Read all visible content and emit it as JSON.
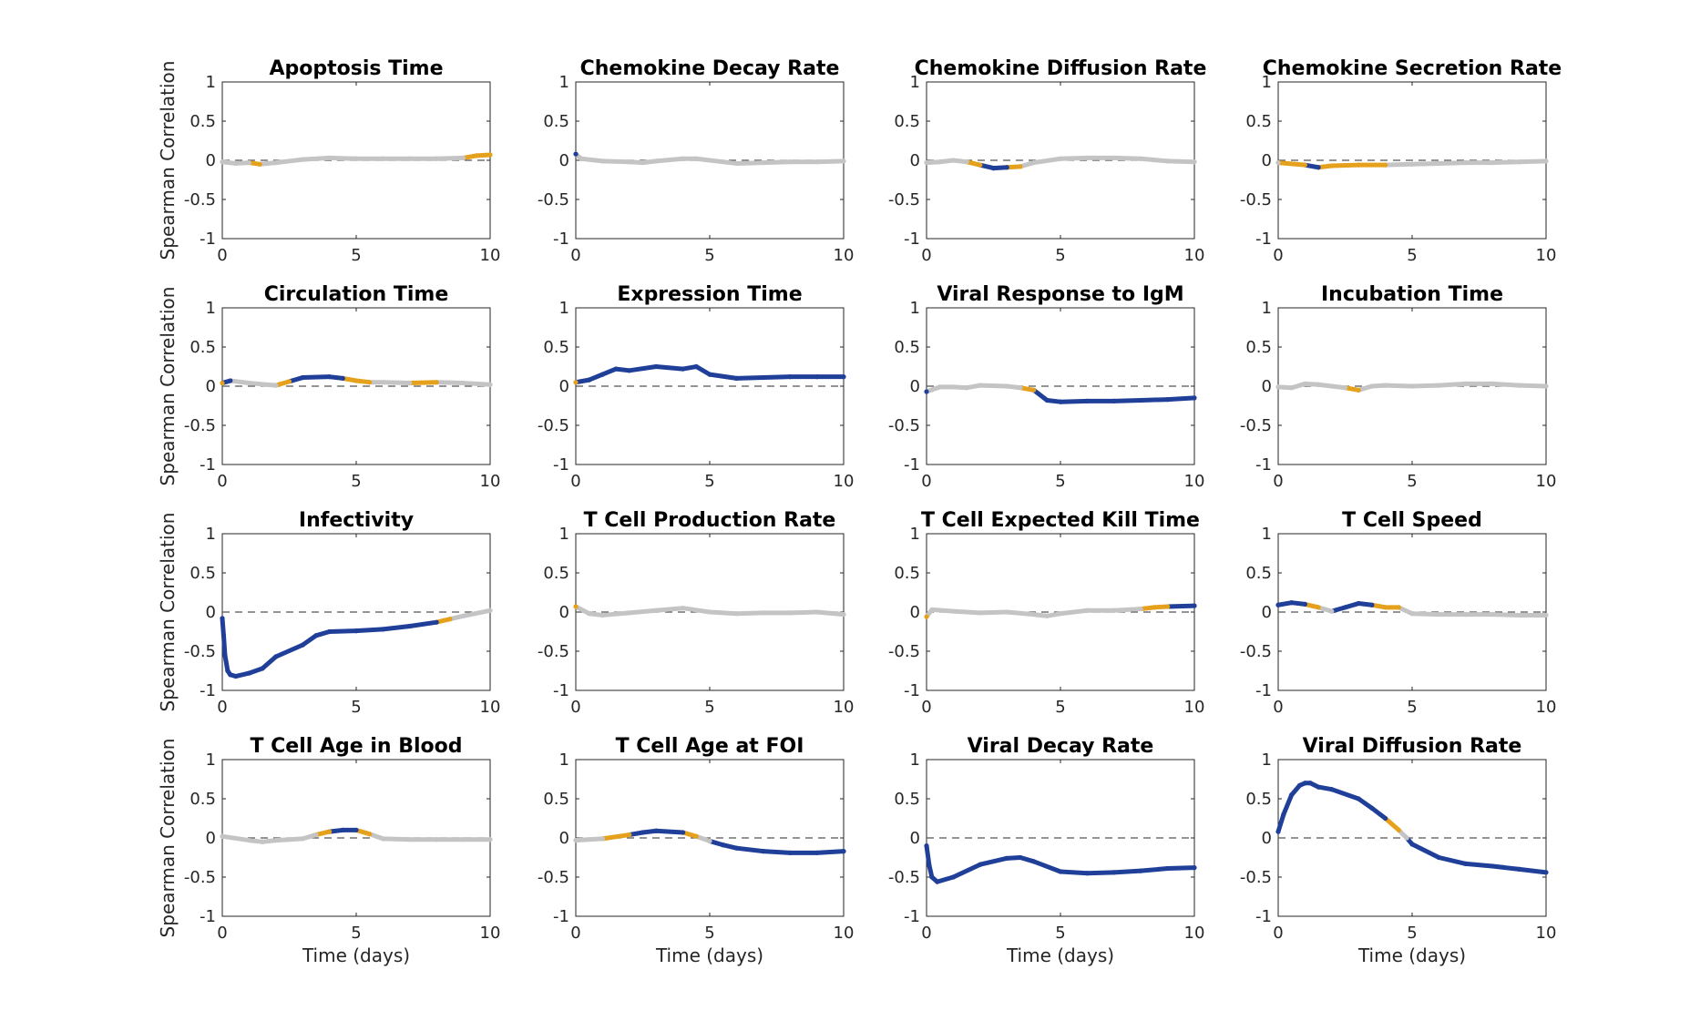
{
  "figure": {
    "ylabel": "Spearman Correlation",
    "xlabel": "Time (days)",
    "xlim": [
      0,
      10
    ],
    "ylim": [
      -1,
      1
    ],
    "xticks": [
      0,
      5,
      10
    ],
    "yticks": [
      1,
      0.5,
      0,
      -0.5,
      -1
    ],
    "zero_line": "dashed",
    "colors": {
      "significant": "#1f3f99",
      "borderline": "#e6a11c",
      "not_significant": "#c4c4c4",
      "axis": "#262626",
      "zero_line": "#555555"
    }
  },
  "chart_data": [
    {
      "type": "line",
      "title": "Apoptosis Time",
      "ylim": [
        -1,
        1
      ],
      "x": [
        0,
        0.5,
        1,
        1.4,
        2,
        3,
        4,
        5,
        6,
        7,
        8,
        9,
        9.5,
        10
      ],
      "y": [
        -0.02,
        -0.04,
        -0.03,
        -0.05,
        -0.03,
        0.01,
        0.03,
        0.02,
        0.02,
        0.02,
        0.02,
        0.03,
        0.06,
        0.07
      ],
      "status": [
        "n",
        "n",
        "n",
        "b",
        "n",
        "n",
        "n",
        "n",
        "n",
        "n",
        "n",
        "n",
        "b",
        "b"
      ]
    },
    {
      "type": "line",
      "title": "Chemokine Decay Rate",
      "ylim": [
        -1,
        1
      ],
      "x": [
        0,
        0.2,
        1,
        2,
        2.5,
        3,
        4,
        4.5,
        5,
        6,
        7,
        8,
        9,
        10
      ],
      "y": [
        0.08,
        0.02,
        -0.01,
        -0.02,
        -0.03,
        -0.01,
        0.02,
        0.02,
        0.0,
        -0.04,
        -0.03,
        -0.02,
        -0.02,
        -0.01
      ],
      "status": [
        "s",
        "n",
        "n",
        "n",
        "n",
        "n",
        "n",
        "n",
        "n",
        "n",
        "n",
        "n",
        "n",
        "n"
      ]
    },
    {
      "type": "line",
      "title": "Chemokine Diffusion Rate",
      "ylim": [
        -1,
        1
      ],
      "x": [
        0,
        0.5,
        1,
        1.5,
        2,
        2.5,
        3,
        3.5,
        4,
        5,
        6,
        7,
        8,
        9,
        10
      ],
      "y": [
        -0.03,
        -0.02,
        0.0,
        -0.02,
        -0.06,
        -0.1,
        -0.09,
        -0.08,
        -0.03,
        0.02,
        0.03,
        0.03,
        0.02,
        -0.01,
        -0.02
      ],
      "status": [
        "n",
        "n",
        "n",
        "n",
        "b",
        "s",
        "s",
        "b",
        "n",
        "n",
        "n",
        "n",
        "n",
        "n",
        "n"
      ]
    },
    {
      "type": "line",
      "title": "Chemokine Secretion Rate",
      "ylim": [
        -1,
        1
      ],
      "x": [
        0,
        1,
        1.5,
        2,
        3,
        4,
        5,
        6,
        7,
        8,
        9,
        10
      ],
      "y": [
        -0.03,
        -0.06,
        -0.09,
        -0.07,
        -0.06,
        -0.06,
        -0.05,
        -0.04,
        -0.03,
        -0.03,
        -0.02,
        -0.01
      ],
      "status": [
        "n",
        "b",
        "s",
        "b",
        "b",
        "b",
        "n",
        "n",
        "n",
        "n",
        "n",
        "n"
      ]
    },
    {
      "type": "line",
      "title": "Circulation Time",
      "ylim": [
        -1,
        1
      ],
      "x": [
        0,
        0.3,
        1,
        2,
        2.5,
        3,
        4,
        4.5,
        5,
        5.5,
        6,
        7,
        8,
        9,
        10
      ],
      "y": [
        0.04,
        0.07,
        0.04,
        0.01,
        0.06,
        0.11,
        0.12,
        0.1,
        0.07,
        0.05,
        0.05,
        0.04,
        0.05,
        0.04,
        0.02
      ],
      "status": [
        "b",
        "s",
        "n",
        "n",
        "b",
        "s",
        "s",
        "s",
        "b",
        "b",
        "n",
        "n",
        "b",
        "n",
        "n"
      ]
    },
    {
      "type": "line",
      "title": "Expression Time",
      "ylim": [
        -1,
        1
      ],
      "x": [
        0,
        0.5,
        1,
        1.5,
        2,
        3,
        4,
        4.5,
        5,
        6,
        7,
        8,
        9,
        10
      ],
      "y": [
        0.05,
        0.08,
        0.15,
        0.22,
        0.2,
        0.25,
        0.22,
        0.25,
        0.15,
        0.1,
        0.11,
        0.12,
        0.12,
        0.12
      ],
      "status": [
        "b",
        "s",
        "s",
        "s",
        "s",
        "s",
        "s",
        "s",
        "s",
        "s",
        "s",
        "s",
        "s",
        "s"
      ]
    },
    {
      "type": "line",
      "title": "Viral Response to IgM",
      "ylim": [
        -1,
        1
      ],
      "x": [
        0,
        0.5,
        1,
        1.5,
        2,
        3,
        3.5,
        4,
        4.5,
        5,
        6,
        7,
        8,
        9,
        10
      ],
      "y": [
        -0.07,
        -0.01,
        -0.01,
        -0.02,
        0.01,
        0.0,
        -0.02,
        -0.05,
        -0.18,
        -0.2,
        -0.19,
        -0.19,
        -0.18,
        -0.17,
        -0.15
      ],
      "status": [
        "s",
        "n",
        "n",
        "n",
        "n",
        "n",
        "n",
        "b",
        "s",
        "s",
        "s",
        "s",
        "s",
        "s",
        "s"
      ]
    },
    {
      "type": "line",
      "title": "Incubation Time",
      "ylim": [
        -1,
        1
      ],
      "x": [
        0,
        0.5,
        1,
        1.5,
        2,
        2.5,
        3,
        3.5,
        4,
        5,
        6,
        7,
        8,
        9,
        10
      ],
      "y": [
        -0.01,
        -0.02,
        0.03,
        0.02,
        0.0,
        -0.02,
        -0.05,
        0.0,
        0.01,
        0.0,
        0.01,
        0.03,
        0.03,
        0.01,
        0.0
      ],
      "status": [
        "n",
        "n",
        "n",
        "n",
        "n",
        "n",
        "b",
        "n",
        "n",
        "n",
        "n",
        "n",
        "n",
        "n",
        "n"
      ]
    },
    {
      "type": "line",
      "title": "Infectivity",
      "ylim": [
        -1,
        1
      ],
      "x": [
        0,
        0.05,
        0.1,
        0.2,
        0.3,
        0.5,
        1,
        1.5,
        2,
        3,
        3.5,
        4,
        5,
        6,
        7,
        8,
        8.5,
        9,
        10
      ],
      "y": [
        -0.08,
        -0.3,
        -0.55,
        -0.75,
        -0.8,
        -0.82,
        -0.78,
        -0.72,
        -0.57,
        -0.42,
        -0.3,
        -0.25,
        -0.24,
        -0.22,
        -0.18,
        -0.13,
        -0.09,
        -0.05,
        0.02
      ],
      "status": [
        "s",
        "s",
        "s",
        "s",
        "s",
        "s",
        "s",
        "s",
        "s",
        "s",
        "s",
        "s",
        "s",
        "s",
        "s",
        "s",
        "b",
        "n",
        "n"
      ]
    },
    {
      "type": "line",
      "title": "T Cell Production Rate",
      "ylim": [
        -1,
        1
      ],
      "x": [
        0,
        0.5,
        1,
        2,
        3,
        4,
        5,
        6,
        7,
        8,
        9,
        10
      ],
      "y": [
        0.07,
        -0.02,
        -0.04,
        -0.01,
        0.02,
        0.05,
        0.0,
        -0.02,
        -0.01,
        -0.01,
        0.0,
        -0.03
      ],
      "status": [
        "b",
        "n",
        "n",
        "n",
        "n",
        "n",
        "n",
        "n",
        "n",
        "n",
        "n",
        "n"
      ]
    },
    {
      "type": "line",
      "title": "T Cell Expected Kill Time",
      "ylim": [
        -1,
        1
      ],
      "x": [
        0,
        0.2,
        1,
        2,
        3,
        4,
        4.5,
        5,
        6,
        7,
        8,
        8.5,
        9,
        10
      ],
      "y": [
        -0.06,
        0.03,
        0.01,
        -0.01,
        0.0,
        -0.03,
        -0.05,
        -0.02,
        0.02,
        0.02,
        0.04,
        0.06,
        0.07,
        0.08
      ],
      "status": [
        "b",
        "n",
        "n",
        "n",
        "n",
        "n",
        "n",
        "n",
        "n",
        "n",
        "n",
        "b",
        "b",
        "s"
      ]
    },
    {
      "type": "line",
      "title": "T Cell Speed",
      "ylim": [
        -1,
        1
      ],
      "x": [
        0,
        0.5,
        1,
        1.5,
        2,
        2.5,
        3,
        3.5,
        4,
        4.5,
        5,
        6,
        7,
        8,
        9,
        10
      ],
      "y": [
        0.09,
        0.12,
        0.1,
        0.06,
        0.01,
        0.06,
        0.11,
        0.09,
        0.06,
        0.06,
        -0.02,
        -0.03,
        -0.03,
        -0.03,
        -0.04,
        -0.04
      ],
      "status": [
        "s",
        "s",
        "s",
        "b",
        "n",
        "s",
        "s",
        "s",
        "b",
        "b",
        "n",
        "n",
        "n",
        "n",
        "n",
        "n"
      ]
    },
    {
      "type": "line",
      "title": "T Cell Age in Blood",
      "ylim": [
        -1,
        1
      ],
      "x": [
        0,
        1,
        1.5,
        2,
        3,
        3.5,
        4,
        4.5,
        5,
        5.5,
        6,
        7,
        8,
        9,
        10
      ],
      "y": [
        0.02,
        -0.03,
        -0.05,
        -0.03,
        -0.01,
        0.04,
        0.08,
        0.1,
        0.1,
        0.05,
        -0.01,
        -0.02,
        -0.02,
        -0.02,
        -0.02
      ],
      "status": [
        "n",
        "n",
        "n",
        "n",
        "n",
        "n",
        "b",
        "s",
        "s",
        "b",
        "n",
        "n",
        "n",
        "n",
        "n"
      ]
    },
    {
      "type": "line",
      "title": "T Cell Age at FOI",
      "ylim": [
        -1,
        1
      ],
      "x": [
        0,
        1,
        2,
        2.5,
        3,
        4,
        4.5,
        5,
        5.5,
        6,
        7,
        8,
        9,
        10
      ],
      "y": [
        -0.03,
        -0.01,
        0.04,
        0.07,
        0.09,
        0.07,
        0.02,
        -0.04,
        -0.09,
        -0.13,
        -0.17,
        -0.19,
        -0.19,
        -0.17
      ],
      "status": [
        "n",
        "n",
        "b",
        "s",
        "s",
        "s",
        "b",
        "n",
        "s",
        "s",
        "s",
        "s",
        "s",
        "s"
      ]
    },
    {
      "type": "line",
      "title": "Viral Decay Rate",
      "ylim": [
        -1,
        1
      ],
      "x": [
        0,
        0.1,
        0.2,
        0.4,
        1,
        2,
        3,
        3.5,
        4,
        5,
        6,
        7,
        8,
        9,
        10
      ],
      "y": [
        -0.1,
        -0.35,
        -0.5,
        -0.56,
        -0.5,
        -0.34,
        -0.26,
        -0.25,
        -0.3,
        -0.43,
        -0.45,
        -0.44,
        -0.42,
        -0.39,
        -0.38
      ],
      "status": [
        "s",
        "s",
        "s",
        "s",
        "s",
        "s",
        "s",
        "s",
        "s",
        "s",
        "s",
        "s",
        "s",
        "s",
        "s"
      ]
    },
    {
      "type": "line",
      "title": "Viral Diffusion Rate",
      "ylim": [
        -1,
        1
      ],
      "x": [
        0,
        0.2,
        0.5,
        0.8,
        1,
        1.2,
        1.5,
        2,
        3,
        3.5,
        4,
        4.5,
        4.8,
        5,
        6,
        7,
        8,
        9,
        10
      ],
      "y": [
        0.08,
        0.3,
        0.55,
        0.67,
        0.7,
        0.7,
        0.65,
        0.62,
        0.5,
        0.38,
        0.25,
        0.1,
        0.0,
        -0.08,
        -0.25,
        -0.33,
        -0.36,
        -0.4,
        -0.44
      ],
      "status": [
        "s",
        "s",
        "s",
        "s",
        "s",
        "s",
        "s",
        "s",
        "s",
        "s",
        "s",
        "b",
        "n",
        "s",
        "s",
        "s",
        "s",
        "s",
        "s"
      ]
    }
  ]
}
